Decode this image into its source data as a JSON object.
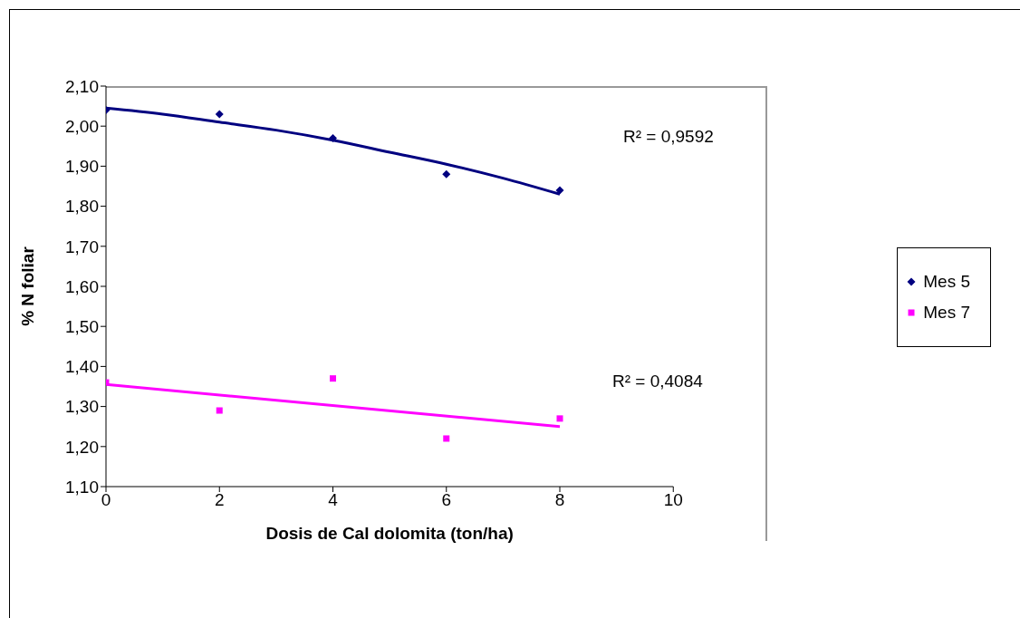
{
  "chart_data": {
    "type": "scatter",
    "xlabel": "Dosis de Cal dolomita (ton/ha)",
    "ylabel": "% N foliar",
    "xlim": [
      0,
      10
    ],
    "xticks": [
      0,
      2,
      4,
      6,
      8,
      10
    ],
    "ylim": [
      1.1,
      2.1
    ],
    "yticks": [
      {
        "value": 1.1,
        "label": "1,10"
      },
      {
        "value": 1.2,
        "label": "1,20"
      },
      {
        "value": 1.3,
        "label": "1,30"
      },
      {
        "value": 1.4,
        "label": "1,40"
      },
      {
        "value": 1.5,
        "label": "1,50"
      },
      {
        "value": 1.6,
        "label": "1,60"
      },
      {
        "value": 1.7,
        "label": "1,70"
      },
      {
        "value": 1.8,
        "label": "1,80"
      },
      {
        "value": 1.9,
        "label": "1,90"
      },
      {
        "value": 2.0,
        "label": "2,00"
      },
      {
        "value": 2.1,
        "label": "2,10"
      }
    ],
    "grid": false,
    "legend": "right",
    "series": [
      {
        "name": "Mes 5",
        "marker": "diamond",
        "color": "#000080",
        "x": [
          0,
          2,
          4,
          6,
          8
        ],
        "values": [
          2.04,
          2.03,
          1.97,
          1.88,
          1.84
        ]
      },
      {
        "name": "Mes 7",
        "marker": "square",
        "color": "#ff00ff",
        "x": [
          0,
          2,
          4,
          6,
          8
        ],
        "values": [
          1.36,
          1.29,
          1.37,
          1.22,
          1.27
        ]
      },
      {
        "type": "line",
        "marker": "none",
        "line_style": "solid",
        "color": "#000080",
        "x": [
          0,
          1,
          2,
          3,
          4,
          5,
          6,
          7,
          8
        ],
        "values": [
          2.045,
          2.03,
          2.01,
          1.99,
          1.965,
          1.935,
          1.905,
          1.87,
          1.83
        ]
      },
      {
        "type": "line",
        "marker": "none",
        "line_style": "solid",
        "color": "#ff00ff",
        "x": [
          0,
          8
        ],
        "values": [
          1.355,
          1.25
        ]
      }
    ],
    "annotations": [
      "R² = 0,9592",
      "R² = 0,4084"
    ]
  }
}
